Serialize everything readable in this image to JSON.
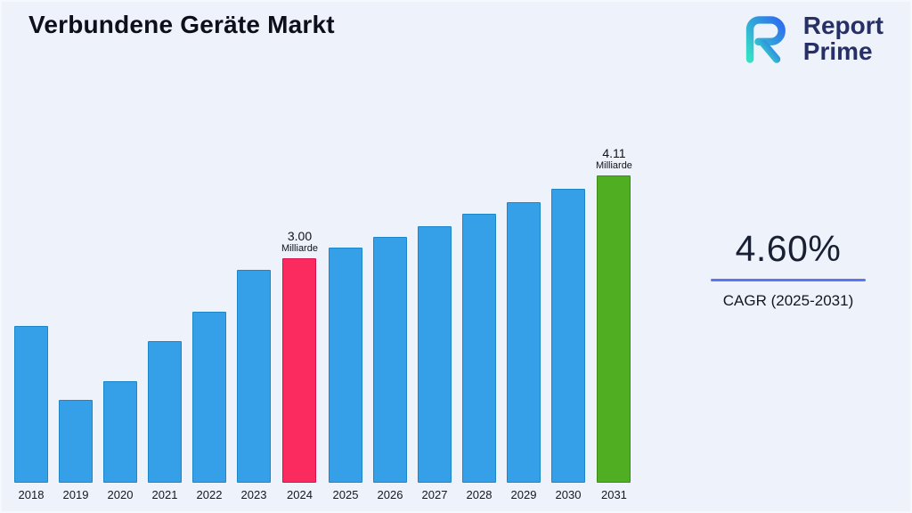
{
  "page": {
    "title": "Verbundene Geräte Markt"
  },
  "logo": {
    "line1": "Report",
    "line2": "Prime",
    "navy": "#263066",
    "teal": "#35e0c4",
    "blue": "#2e6bf0"
  },
  "cagr": {
    "value": "4.60%",
    "label": "CAGR (2025-2031)",
    "line_color": "#5a76f2"
  },
  "chart_data": {
    "type": "bar",
    "title": "Verbundene Geräte Markt",
    "unit": "Milliarde",
    "categories": [
      "2018",
      "2019",
      "2020",
      "2021",
      "2022",
      "2023",
      "2024",
      "2025",
      "2026",
      "2027",
      "2028",
      "2029",
      "2030",
      "2031"
    ],
    "values": [
      2.1,
      1.11,
      1.36,
      1.89,
      2.28,
      2.84,
      3.0,
      3.14,
      3.28,
      3.43,
      3.59,
      3.75,
      3.93,
      4.11
    ],
    "ylim": [
      0,
      4.6
    ],
    "xlabel": "",
    "ylabel": "",
    "grid": false,
    "legend": false,
    "bar_color_default": "#35a0e8",
    "bar_border_default": "#1d86c9",
    "highlighted_bars": [
      {
        "category": "2024",
        "color": "#fb2b60",
        "border": "#d6124a"
      },
      {
        "category": "2031",
        "color": "#4fae21",
        "border": "#3c8c15"
      }
    ],
    "annotations": [
      {
        "category": "2024",
        "value_label": "3.00",
        "unit_label": "Milliarde"
      },
      {
        "category": "2031",
        "value_label": "4.11",
        "unit_label": "Milliarde"
      }
    ]
  }
}
